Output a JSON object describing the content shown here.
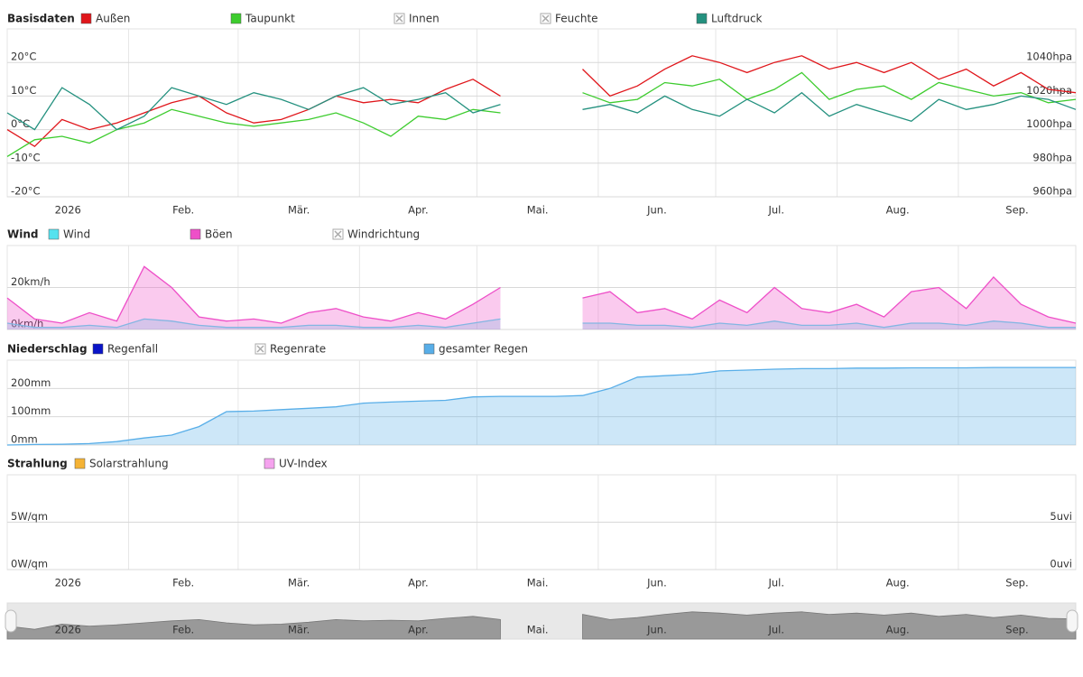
{
  "chart_data": [
    {
      "type": "line",
      "title": "Basisdaten",
      "xlim": [
        0,
        273
      ],
      "xticks": [
        {
          "value": 0,
          "label": "2026"
        },
        {
          "value": 31,
          "label": "Feb."
        },
        {
          "value": 59,
          "label": "Mär."
        },
        {
          "value": 90,
          "label": "Apr."
        },
        {
          "value": 120,
          "label": "Mai."
        },
        {
          "value": 151,
          "label": "Jun."
        },
        {
          "value": 181,
          "label": "Jul."
        },
        {
          "value": 212,
          "label": "Aug."
        },
        {
          "value": 243,
          "label": "Sep."
        }
      ],
      "x": [
        0,
        7,
        14,
        21,
        28,
        35,
        42,
        49,
        56,
        63,
        70,
        77,
        84,
        91,
        98,
        105,
        112,
        119,
        126,
        133,
        140,
        147,
        154,
        161,
        168,
        175,
        182,
        189,
        196,
        203,
        210,
        217,
        224,
        231,
        238,
        245,
        252,
        259,
        266,
        273
      ],
      "ylim": [
        -20,
        30
      ],
      "yticks": [
        {
          "value": -20,
          "label": "-20°C"
        },
        {
          "value": -10,
          "label": "-10°C"
        },
        {
          "value": 0,
          "label": "0°C"
        },
        {
          "value": 10,
          "label": "10°C"
        },
        {
          "value": 20,
          "label": "20°C"
        }
      ],
      "y2lim": [
        960,
        1060
      ],
      "y2ticks": [
        {
          "value": 960,
          "label": "960hpa"
        },
        {
          "value": 980,
          "label": "980hpa"
        },
        {
          "value": 1000,
          "label": "1000hpa"
        },
        {
          "value": 1020,
          "label": "1020hpa"
        },
        {
          "value": 1040,
          "label": "1040hpa"
        }
      ],
      "grid": true,
      "series": [
        {
          "name": "Außen",
          "color": "#e0161b",
          "values": [
            0,
            -5,
            3,
            0,
            2,
            5,
            8,
            10,
            5,
            2,
            3,
            6,
            10,
            8,
            9,
            8,
            12,
            15,
            10,
            null,
            null,
            18,
            10,
            13,
            18,
            22,
            20,
            17,
            20,
            22,
            18,
            20,
            17,
            20,
            15,
            18,
            13,
            17,
            12,
            11
          ]
        },
        {
          "name": "Taupunkt",
          "color": "#3dcc2e",
          "values": [
            -8,
            -3,
            -2,
            -4,
            0,
            2,
            6,
            4,
            2,
            1,
            2,
            3,
            5,
            2,
            -2,
            4,
            3,
            6,
            5,
            null,
            null,
            11,
            8,
            9,
            14,
            13,
            15,
            9,
            12,
            17,
            9,
            12,
            13,
            9,
            14,
            12,
            10,
            11,
            8,
            9
          ]
        },
        {
          "name": "Innen",
          "color": "#aaaaaa",
          "visible": false
        },
        {
          "name": "Feuchte",
          "color": "#aaaaaa",
          "visible": false
        },
        {
          "name": "Luftdruck",
          "color": "#24917f",
          "axis": "y2",
          "values": [
            1010,
            1000,
            1025,
            1015,
            1000,
            1008,
            1025,
            1020,
            1015,
            1022,
            1018,
            1012,
            1020,
            1025,
            1015,
            1018,
            1022,
            1010,
            1015,
            null,
            null,
            1012,
            1015,
            1010,
            1020,
            1012,
            1008,
            1018,
            1010,
            1022,
            1008,
            1015,
            1010,
            1005,
            1018,
            1012,
            1015,
            1020,
            1018,
            1012
          ]
        }
      ]
    },
    {
      "type": "area",
      "title": "Wind",
      "xlim": [
        0,
        273
      ],
      "xticks": [
        0,
        31,
        59,
        90,
        120,
        151,
        181,
        212,
        243
      ],
      "x": [
        0,
        7,
        14,
        21,
        28,
        35,
        42,
        49,
        56,
        63,
        70,
        77,
        84,
        91,
        98,
        105,
        112,
        119,
        126,
        133,
        140,
        147,
        154,
        161,
        168,
        175,
        182,
        189,
        196,
        203,
        210,
        217,
        224,
        231,
        238,
        245,
        252,
        259,
        266,
        273
      ],
      "ylim": [
        0,
        40
      ],
      "yticks": [
        {
          "value": 0,
          "label": "0km/h"
        },
        {
          "value": 20,
          "label": "20km/h"
        }
      ],
      "grid": true,
      "series": [
        {
          "name": "Wind",
          "color": "#55e2ee",
          "values": [
            3,
            1,
            1,
            2,
            1,
            5,
            4,
            2,
            1,
            1,
            1,
            2,
            2,
            1,
            1,
            2,
            1,
            3,
            5,
            null,
            null,
            3,
            3,
            2,
            2,
            1,
            3,
            2,
            4,
            2,
            2,
            3,
            1,
            3,
            3,
            2,
            4,
            3,
            1,
            1
          ]
        },
        {
          "name": "Böen",
          "color": "#ee4fc8",
          "values": [
            15,
            5,
            3,
            8,
            4,
            30,
            20,
            6,
            4,
            5,
            3,
            8,
            10,
            6,
            4,
            8,
            5,
            12,
            20,
            null,
            null,
            15,
            18,
            8,
            10,
            5,
            14,
            8,
            20,
            10,
            8,
            12,
            6,
            18,
            20,
            10,
            25,
            12,
            6,
            3
          ]
        },
        {
          "name": "Windrichtung",
          "color": "#aaaaaa",
          "visible": false
        }
      ]
    },
    {
      "type": "area",
      "title": "Niederschlag",
      "xlim": [
        0,
        273
      ],
      "xticks": [
        0,
        31,
        59,
        90,
        120,
        151,
        181,
        212,
        243
      ],
      "x": [
        0,
        7,
        14,
        21,
        28,
        35,
        42,
        49,
        56,
        63,
        70,
        77,
        84,
        91,
        98,
        105,
        112,
        119,
        126,
        133,
        140,
        147,
        154,
        161,
        168,
        175,
        182,
        189,
        196,
        203,
        210,
        217,
        224,
        231,
        238,
        245,
        252,
        259,
        266,
        273
      ],
      "ylim": [
        0,
        300
      ],
      "yticks": [
        {
          "value": 0,
          "label": "0mm"
        },
        {
          "value": 100,
          "label": "100mm"
        },
        {
          "value": 200,
          "label": "200mm"
        }
      ],
      "grid": true,
      "series": [
        {
          "name": "Regenfall",
          "color": "#0a14c8"
        },
        {
          "name": "Regenrate",
          "color": "#aaaaaa",
          "visible": false
        },
        {
          "name": "gesamter Regen",
          "color": "#58aee8",
          "values": [
            0,
            2,
            3,
            5,
            12,
            25,
            35,
            65,
            118,
            120,
            125,
            130,
            135,
            148,
            152,
            155,
            158,
            170,
            172,
            172,
            172,
            175,
            200,
            240,
            245,
            250,
            262,
            265,
            268,
            270,
            270,
            272,
            272,
            273,
            273,
            273,
            274,
            274,
            274,
            274
          ]
        }
      ]
    },
    {
      "type": "line",
      "title": "Strahlung",
      "xlim": [
        0,
        273
      ],
      "xticks": [
        {
          "value": 0,
          "label": "2026"
        },
        {
          "value": 31,
          "label": "Feb."
        },
        {
          "value": 59,
          "label": "Mär."
        },
        {
          "value": 90,
          "label": "Apr."
        },
        {
          "value": 120,
          "label": "Mai."
        },
        {
          "value": 151,
          "label": "Jun."
        },
        {
          "value": 181,
          "label": "Jul."
        },
        {
          "value": 212,
          "label": "Aug."
        },
        {
          "value": 243,
          "label": "Sep."
        }
      ],
      "ylim": [
        0,
        10
      ],
      "yticks": [
        {
          "value": 0,
          "label": "0W/qm"
        },
        {
          "value": 5,
          "label": "5W/qm"
        }
      ],
      "y2lim": [
        0,
        10
      ],
      "y2ticks": [
        {
          "value": 0,
          "label": "0uvi"
        },
        {
          "value": 5,
          "label": "5uvi"
        }
      ],
      "grid": true,
      "series": [
        {
          "name": "Solarstrahlung",
          "color": "#f5b335"
        },
        {
          "name": "UV-Index",
          "color": "#f5a3ee"
        }
      ]
    }
  ]
}
